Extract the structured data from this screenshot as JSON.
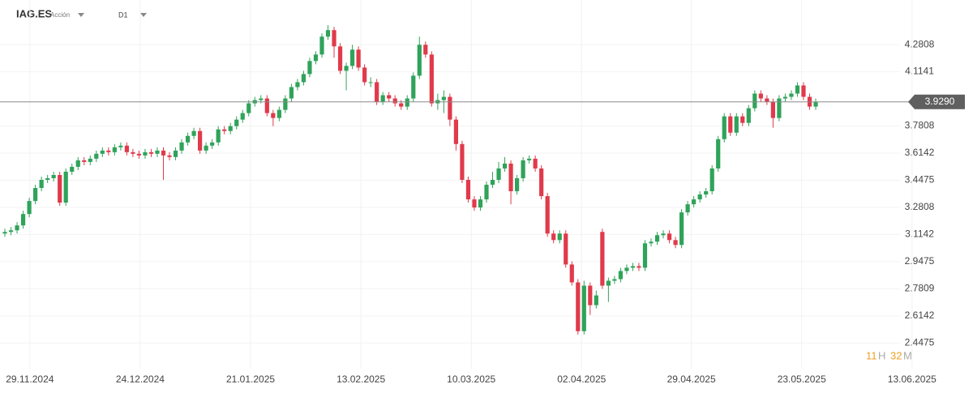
{
  "header": {
    "symbol": "IAG.ES",
    "asset_type": "Acción",
    "timeframe": "D1"
  },
  "countdown": {
    "hours": "11",
    "hours_unit": "H",
    "minutes": "32",
    "minutes_unit": "M"
  },
  "chart_data": {
    "type": "candlestick",
    "x": [
      0,
      1,
      2,
      3,
      4,
      5,
      6,
      7,
      8,
      9,
      10,
      11,
      12,
      13,
      14,
      15,
      16,
      17,
      18,
      19,
      20,
      21,
      22,
      23,
      24,
      25,
      26,
      27,
      28,
      29,
      30,
      31,
      32,
      33,
      34,
      35,
      36,
      37,
      38,
      39,
      40,
      41,
      42,
      43,
      44,
      45,
      46,
      47,
      48,
      49,
      50,
      51,
      52,
      53,
      54,
      55,
      56,
      57,
      58,
      59,
      60,
      61,
      62,
      63,
      64,
      65,
      66,
      67,
      68,
      69,
      70,
      71,
      72,
      73,
      74,
      75,
      76,
      77,
      78,
      79,
      80,
      81,
      82,
      83,
      84,
      85,
      86,
      87,
      88,
      89,
      90,
      91,
      92,
      93,
      94,
      95,
      96,
      97,
      98,
      99,
      100,
      101,
      102,
      103,
      104,
      105,
      106,
      107,
      108,
      109,
      110,
      111,
      112,
      113,
      114,
      115,
      116,
      117,
      118,
      119,
      120,
      121,
      122,
      123,
      124,
      125,
      126,
      127,
      128,
      129,
      130,
      131,
      132,
      133
    ],
    "open": [
      3.12,
      3.13,
      3.14,
      3.17,
      3.24,
      3.32,
      3.4,
      3.45,
      3.46,
      3.48,
      3.31,
      3.5,
      3.53,
      3.57,
      3.56,
      3.58,
      3.61,
      3.63,
      3.62,
      3.65,
      3.66,
      3.62,
      3.61,
      3.6,
      3.62,
      3.61,
      3.63,
      3.6,
      3.59,
      3.63,
      3.68,
      3.72,
      3.75,
      3.63,
      3.66,
      3.68,
      3.76,
      3.75,
      3.78,
      3.82,
      3.86,
      3.92,
      3.94,
      3.95,
      3.86,
      3.83,
      3.88,
      3.95,
      4.02,
      4.05,
      4.1,
      4.18,
      4.22,
      4.33,
      4.37,
      4.27,
      4.12,
      4.15,
      4.25,
      4.14,
      4.05,
      4.05,
      3.93,
      3.97,
      3.95,
      3.92,
      3.9,
      3.95,
      4.09,
      4.28,
      4.22,
      3.92,
      3.94,
      3.96,
      3.82,
      3.67,
      3.45,
      3.33,
      3.28,
      3.33,
      3.42,
      3.45,
      3.52,
      3.55,
      3.38,
      3.46,
      3.57,
      3.58,
      3.52,
      3.35,
      3.12,
      3.08,
      3.12,
      2.93,
      2.82,
      2.52,
      2.8,
      2.68,
      3.13,
      2.8,
      2.83,
      2.84,
      2.89,
      2.91,
      2.92,
      2.91,
      3.06,
      3.07,
      3.11,
      3.12,
      3.08,
      3.05,
      3.25,
      3.3,
      3.33,
      3.36,
      3.38,
      3.52,
      3.7,
      3.84,
      3.74,
      3.84,
      3.8,
      3.89,
      3.98,
      3.95,
      3.93,
      3.83,
      3.95,
      3.96,
      3.98,
      4.03,
      3.96,
      3.9
    ],
    "high": [
      3.15,
      3.16,
      3.19,
      3.26,
      3.34,
      3.42,
      3.47,
      3.48,
      3.5,
      3.5,
      3.52,
      3.55,
      3.59,
      3.59,
      3.6,
      3.63,
      3.65,
      3.65,
      3.67,
      3.68,
      3.68,
      3.64,
      3.63,
      3.64,
      3.64,
      3.65,
      3.65,
      3.62,
      3.65,
      3.7,
      3.74,
      3.77,
      3.77,
      3.68,
      3.7,
      3.78,
      3.78,
      3.8,
      3.84,
      3.88,
      3.94,
      3.96,
      3.97,
      3.97,
      3.88,
      3.9,
      3.97,
      4.04,
      4.07,
      4.12,
      4.2,
      4.24,
      4.35,
      4.4,
      4.39,
      4.29,
      4.17,
      4.28,
      4.27,
      4.16,
      4.08,
      4.07,
      3.99,
      3.99,
      3.97,
      3.94,
      3.97,
      4.11,
      4.33,
      4.3,
      4.24,
      3.98,
      4.0,
      3.98,
      3.84,
      3.69,
      3.47,
      3.35,
      3.35,
      3.44,
      3.5,
      3.56,
      3.59,
      3.57,
      3.48,
      3.59,
      3.6,
      3.6,
      3.54,
      3.37,
      3.14,
      3.14,
      3.14,
      2.95,
      2.84,
      2.83,
      2.82,
      2.77,
      3.15,
      2.85,
      2.86,
      2.91,
      2.93,
      2.94,
      2.94,
      3.08,
      3.09,
      3.13,
      3.14,
      3.14,
      3.1,
      3.27,
      3.32,
      3.35,
      3.38,
      3.4,
      3.54,
      3.72,
      3.86,
      3.86,
      3.86,
      3.86,
      3.91,
      4.0,
      4.0,
      3.97,
      3.95,
      3.97,
      3.98,
      4.0,
      4.05,
      4.05,
      3.98,
      3.95
    ],
    "low": [
      3.1,
      3.11,
      3.12,
      3.15,
      3.22,
      3.3,
      3.38,
      3.43,
      3.44,
      3.29,
      3.29,
      3.48,
      3.51,
      3.54,
      3.54,
      3.56,
      3.59,
      3.6,
      3.6,
      3.63,
      3.6,
      3.59,
      3.58,
      3.58,
      3.59,
      3.59,
      3.45,
      3.57,
      3.57,
      3.61,
      3.66,
      3.7,
      3.61,
      3.61,
      3.64,
      3.66,
      3.73,
      3.73,
      3.76,
      3.8,
      3.84,
      3.9,
      3.92,
      3.84,
      3.78,
      3.81,
      3.86,
      3.93,
      4.0,
      4.03,
      4.08,
      4.16,
      4.2,
      4.31,
      4.2,
      4.1,
      4.0,
      4.13,
      4.12,
      4.03,
      4.02,
      3.91,
      3.91,
      3.93,
      3.9,
      3.88,
      3.88,
      3.93,
      4.07,
      4.2,
      3.9,
      3.88,
      3.86,
      3.78,
      3.63,
      3.43,
      3.31,
      3.26,
      3.26,
      3.31,
      3.4,
      3.43,
      3.5,
      3.3,
      3.36,
      3.44,
      3.55,
      3.5,
      3.33,
      3.1,
      3.06,
      3.06,
      2.91,
      2.8,
      2.5,
      2.5,
      2.62,
      2.66,
      2.78,
      2.7,
      2.81,
      2.82,
      2.87,
      2.89,
      2.89,
      2.89,
      3.04,
      3.05,
      3.09,
      3.06,
      3.03,
      3.03,
      3.23,
      3.28,
      3.31,
      3.34,
      3.36,
      3.5,
      3.68,
      3.72,
      3.72,
      3.78,
      3.78,
      3.87,
      3.93,
      3.91,
      3.77,
      3.81,
      3.93,
      3.94,
      3.96,
      3.94,
      3.88,
      3.88
    ],
    "close": [
      3.13,
      3.14,
      3.17,
      3.24,
      3.32,
      3.4,
      3.45,
      3.46,
      3.48,
      3.31,
      3.5,
      3.53,
      3.57,
      3.56,
      3.58,
      3.61,
      3.63,
      3.62,
      3.65,
      3.66,
      3.62,
      3.61,
      3.6,
      3.62,
      3.61,
      3.63,
      3.6,
      3.59,
      3.63,
      3.68,
      3.72,
      3.75,
      3.63,
      3.66,
      3.68,
      3.76,
      3.75,
      3.78,
      3.82,
      3.86,
      3.92,
      3.94,
      3.95,
      3.86,
      3.83,
      3.88,
      3.95,
      4.02,
      4.05,
      4.1,
      4.18,
      4.22,
      4.33,
      4.37,
      4.27,
      4.12,
      4.15,
      4.25,
      4.14,
      4.05,
      4.05,
      3.93,
      3.97,
      3.95,
      3.92,
      3.9,
      3.95,
      4.09,
      4.28,
      4.22,
      3.92,
      3.94,
      3.96,
      3.82,
      3.67,
      3.45,
      3.33,
      3.28,
      3.33,
      3.42,
      3.45,
      3.52,
      3.55,
      3.38,
      3.46,
      3.57,
      3.58,
      3.52,
      3.35,
      3.12,
      3.08,
      3.12,
      2.93,
      2.82,
      2.52,
      2.8,
      2.68,
      2.74,
      2.8,
      2.83,
      2.84,
      2.89,
      2.91,
      2.92,
      2.91,
      3.06,
      3.07,
      3.11,
      3.12,
      3.08,
      3.05,
      3.25,
      3.3,
      3.33,
      3.36,
      3.38,
      3.52,
      3.7,
      3.84,
      3.74,
      3.84,
      3.8,
      3.89,
      3.98,
      3.95,
      3.93,
      3.83,
      3.95,
      3.96,
      3.98,
      4.03,
      3.96,
      3.9,
      3.929
    ],
    "up_color": "#2fa35a",
    "down_color": "#e03a4b",
    "current_price": {
      "value": 3.929,
      "label": "3.9290"
    },
    "xlim": [
      -0.8,
      158.8
    ],
    "xticks": [
      {
        "value": 4.1,
        "label": "29.11.2024"
      },
      {
        "value": 22.2,
        "label": "24.12.2024"
      },
      {
        "value": 40.3,
        "label": "21.01.2025"
      },
      {
        "value": 58.4,
        "label": "13.02.2025"
      },
      {
        "value": 76.5,
        "label": "10.03.2025"
      },
      {
        "value": 94.6,
        "label": "02.04.2025"
      },
      {
        "value": 112.6,
        "label": "29.04.2025"
      },
      {
        "value": 130.7,
        "label": "23.05.2025"
      },
      {
        "value": 148.8,
        "label": "13.06.2025"
      }
    ],
    "ylim": [
      2.29,
      4.555
    ],
    "yticks": [
      4.2808,
      4.1141,
      3.7808,
      3.6142,
      3.4475,
      3.2808,
      3.1142,
      2.9475,
      2.7809,
      2.6142,
      2.4475
    ],
    "grid": true
  }
}
